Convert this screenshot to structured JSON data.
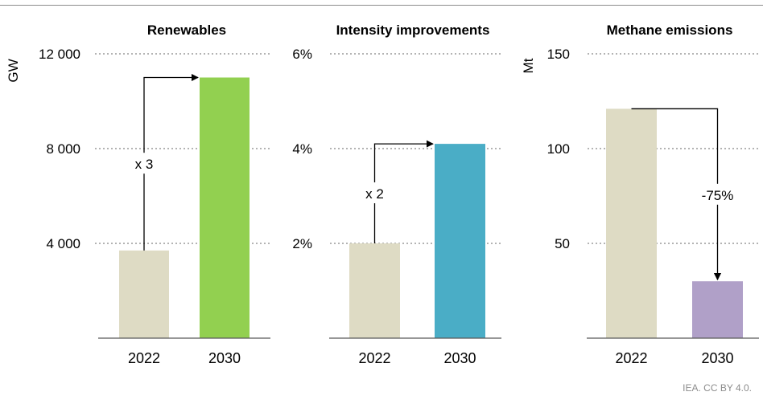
{
  "chart_data": [
    {
      "type": "bar",
      "title": "Renewables",
      "ylabel": "GW",
      "ylim": [
        0,
        12000
      ],
      "yticks": [
        "4 000",
        "8 000",
        "12 000"
      ],
      "categories": [
        "2022",
        "2030"
      ],
      "values": [
        3700,
        11000
      ],
      "colors": [
        "#dedbc4",
        "#92d050"
      ],
      "annotation": "x 3",
      "grid": true
    },
    {
      "type": "bar",
      "title": "Intensity improvements",
      "ylabel": "",
      "ylim": [
        0,
        6
      ],
      "yticks": [
        "2%",
        "4%",
        "6%"
      ],
      "categories": [
        "2022",
        "2030"
      ],
      "values": [
        2.0,
        4.1
      ],
      "colors": [
        "#dedbc4",
        "#4aadc6"
      ],
      "annotation": "x 2",
      "grid": true
    },
    {
      "type": "bar",
      "title": "Methane emissions",
      "ylabel": "Mt",
      "ylim": [
        0,
        150
      ],
      "yticks": [
        "50",
        "100",
        "150"
      ],
      "categories": [
        "2022",
        "2030"
      ],
      "values": [
        121,
        30
      ],
      "colors": [
        "#dedbc4",
        "#b0a0c8"
      ],
      "annotation": "-75%",
      "grid": true
    }
  ],
  "source": "IEA. CC BY 4.0."
}
